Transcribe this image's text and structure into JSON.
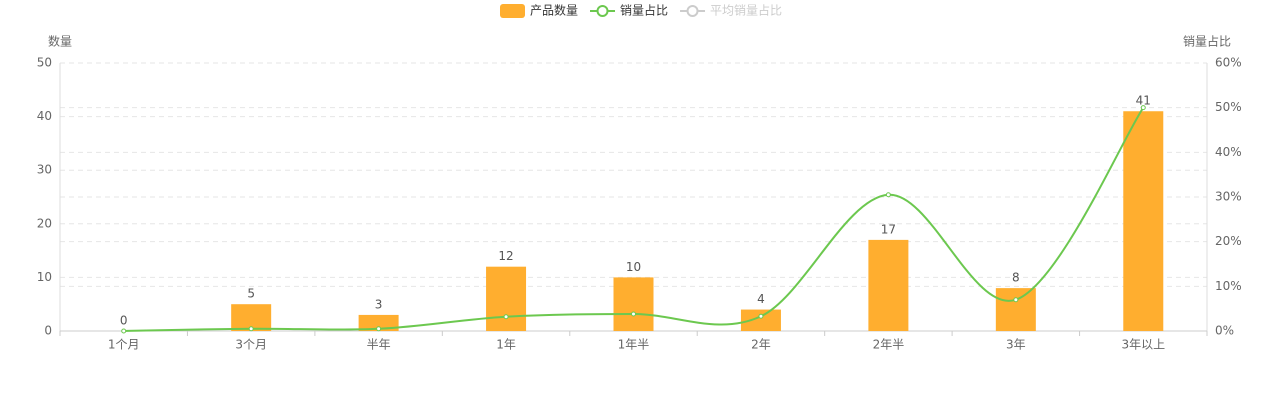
{
  "chart_data": {
    "type": "bar",
    "categories": [
      "1个月",
      "3个月",
      "半年",
      "1年",
      "1年半",
      "2年",
      "2年半",
      "3年",
      "3年以上"
    ],
    "series": [
      {
        "name": "产品数量",
        "type": "bar",
        "color": "#ffae2f",
        "values": [
          0,
          5,
          3,
          12,
          10,
          4,
          17,
          8,
          41
        ]
      },
      {
        "name": "销量占比",
        "type": "line",
        "axis": "y2",
        "color": "#6cc84f",
        "smooth": true,
        "values": [
          0,
          0.5,
          0.5,
          3.2,
          3.8,
          3.3,
          30.5,
          7,
          50
        ]
      },
      {
        "name": "平均销量占比",
        "type": "line",
        "axis": "y2",
        "color": "#cccccc",
        "hidden": true
      }
    ],
    "ylabel": "数量",
    "y2label": "销量占比",
    "ylim": [
      0,
      50
    ],
    "yticks": [
      0,
      10,
      20,
      30,
      40,
      50
    ],
    "y2lim": [
      0,
      60
    ],
    "y2ticks": [
      {
        "value": 0,
        "label": "0%"
      },
      {
        "value": 10,
        "label": "10%"
      },
      {
        "value": 20,
        "label": "20%"
      },
      {
        "value": 30,
        "label": "30%"
      },
      {
        "value": 40,
        "label": "40%"
      },
      {
        "value": 50,
        "label": "50%"
      },
      {
        "value": 60,
        "label": "60%"
      }
    ],
    "grid": true
  }
}
